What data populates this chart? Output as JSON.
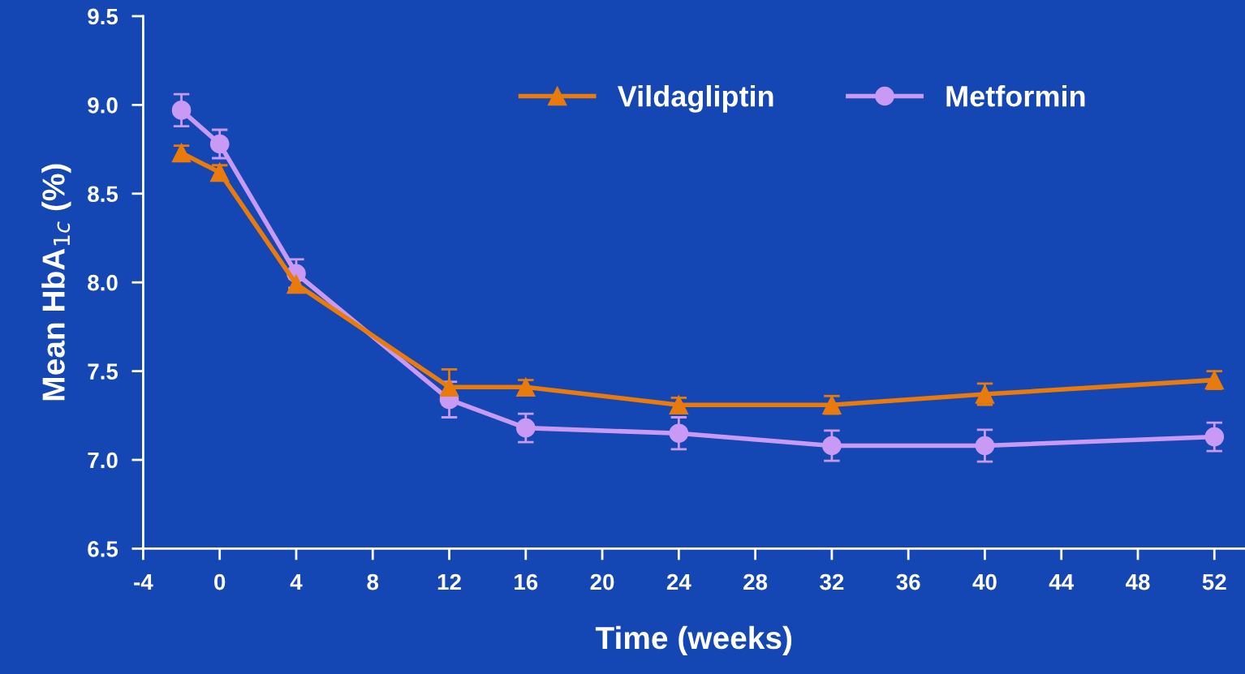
{
  "chart_data": {
    "type": "line",
    "xlabel": "Time (weeks)",
    "ylabel": "Mean HbA$_{1c}$ (%)",
    "x": [
      -2,
      0,
      4,
      12,
      16,
      24,
      32,
      40,
      52
    ],
    "series": [
      {
        "name": "Vildagliptin",
        "color": "#e87b0c",
        "marker": "triangle",
        "values": [
          8.73,
          8.62,
          7.99,
          7.41,
          7.41,
          7.31,
          7.31,
          7.37,
          7.45
        ],
        "errors": [
          0.04,
          0.04,
          0.03,
          0.1,
          0.04,
          0.04,
          0.05,
          0.06,
          0.05
        ]
      },
      {
        "name": "Metformin",
        "color": "#c99af5",
        "marker": "circle",
        "values": [
          8.97,
          8.78,
          8.05,
          7.34,
          7.18,
          7.15,
          7.08,
          7.08,
          7.13
        ],
        "errors": [
          0.09,
          0.08,
          0.08,
          0.1,
          0.08,
          0.09,
          0.085,
          0.09,
          0.08
        ]
      }
    ],
    "xlim": [
      -4,
      53.6
    ],
    "xticks": [
      -4,
      0,
      4,
      8,
      12,
      16,
      20,
      24,
      28,
      32,
      36,
      40,
      44,
      48,
      52
    ],
    "ylim": [
      6.5,
      9.5
    ],
    "yticks": [
      6.5,
      {
        "value": 7,
        "label": "7.0"
      },
      7.5,
      {
        "value": 8,
        "label": "8.0"
      },
      8.5,
      {
        "value": 9,
        "label": "9.0"
      },
      9.5
    ],
    "grid": false,
    "legend": "top right",
    "line_style": "solid"
  }
}
